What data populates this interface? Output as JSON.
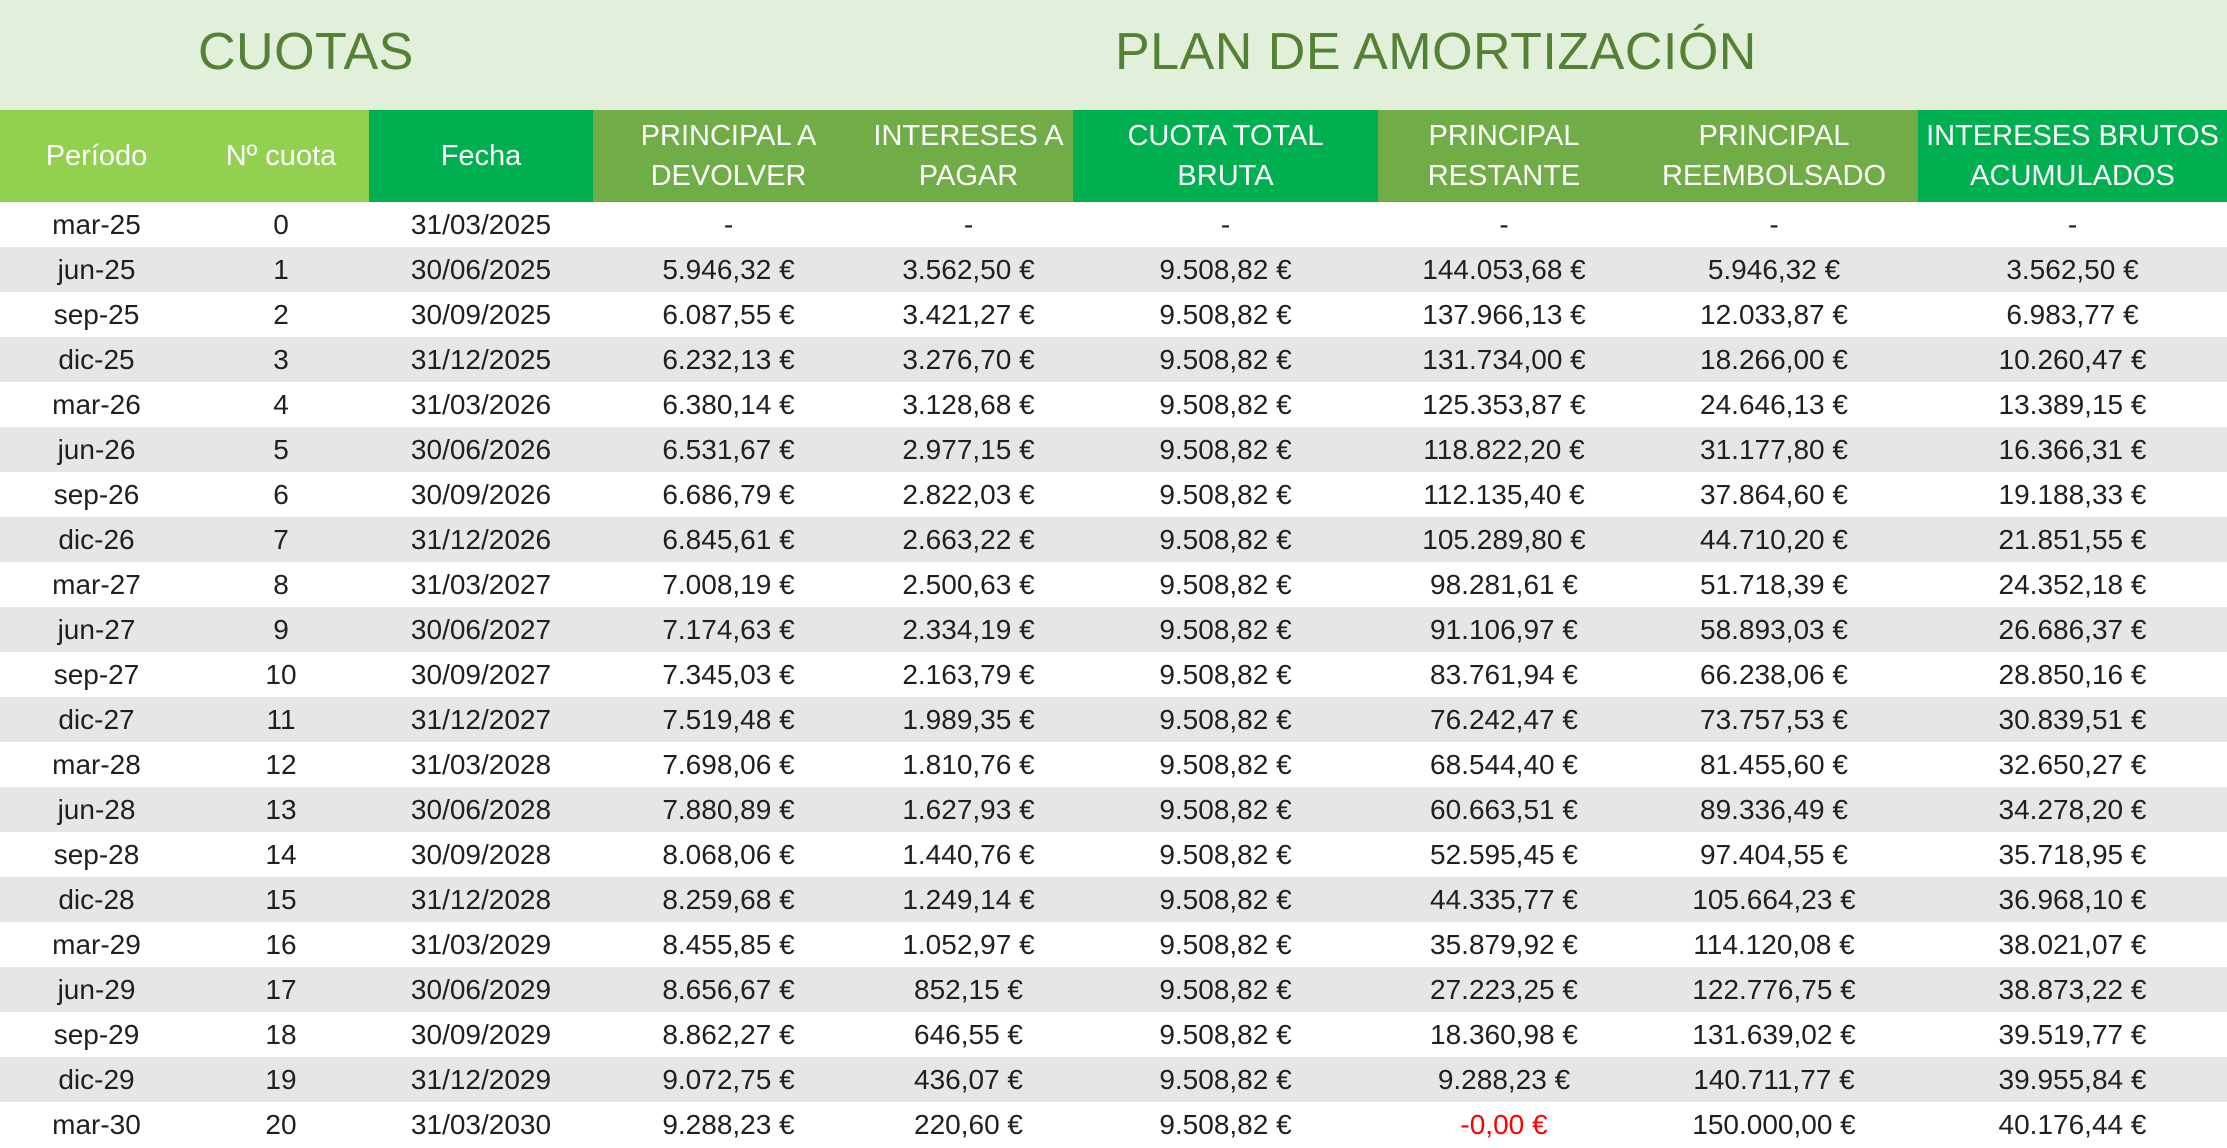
{
  "titles": {
    "cuotas": "CUOTAS",
    "plan": "PLAN DE AMORTIZACIÓN"
  },
  "headers": [
    {
      "l1": "Período",
      "l2": ""
    },
    {
      "l1": "Nº cuota",
      "l2": ""
    },
    {
      "l1": "Fecha",
      "l2": ""
    },
    {
      "l1": "PRINCIPAL A",
      "l2": "DEVOLVER"
    },
    {
      "l1": "INTERESES A",
      "l2": "PAGAR"
    },
    {
      "l1": "CUOTA TOTAL",
      "l2": "BRUTA"
    },
    {
      "l1": "PRINCIPAL",
      "l2": "RESTANTE"
    },
    {
      "l1": "PRINCIPAL",
      "l2": "REEMBOLSADO"
    },
    {
      "l1": "INTERESES BRUTOS",
      "l2": "ACUMULADOS"
    }
  ],
  "colors": {
    "title_band": "#e2efda",
    "title_text": "#548235",
    "header_light_green": "#92d050",
    "header_bright_green": "#00b050",
    "header_dark_green": "#70ad47",
    "stripe": "#e7e6e6",
    "negative": "#ff0000"
  },
  "rows": [
    [
      "mar-25",
      "0",
      "31/03/2025",
      "-",
      "-",
      "-",
      "-",
      "-",
      "-"
    ],
    [
      "jun-25",
      "1",
      "30/06/2025",
      "5.946,32 €",
      "3.562,50 €",
      "9.508,82 €",
      "144.053,68 €",
      "5.946,32 €",
      "3.562,50 €"
    ],
    [
      "sep-25",
      "2",
      "30/09/2025",
      "6.087,55 €",
      "3.421,27 €",
      "9.508,82 €",
      "137.966,13 €",
      "12.033,87 €",
      "6.983,77 €"
    ],
    [
      "dic-25",
      "3",
      "31/12/2025",
      "6.232,13 €",
      "3.276,70 €",
      "9.508,82 €",
      "131.734,00 €",
      "18.266,00 €",
      "10.260,47 €"
    ],
    [
      "mar-26",
      "4",
      "31/03/2026",
      "6.380,14 €",
      "3.128,68 €",
      "9.508,82 €",
      "125.353,87 €",
      "24.646,13 €",
      "13.389,15 €"
    ],
    [
      "jun-26",
      "5",
      "30/06/2026",
      "6.531,67 €",
      "2.977,15 €",
      "9.508,82 €",
      "118.822,20 €",
      "31.177,80 €",
      "16.366,31 €"
    ],
    [
      "sep-26",
      "6",
      "30/09/2026",
      "6.686,79 €",
      "2.822,03 €",
      "9.508,82 €",
      "112.135,40 €",
      "37.864,60 €",
      "19.188,33 €"
    ],
    [
      "dic-26",
      "7",
      "31/12/2026",
      "6.845,61 €",
      "2.663,22 €",
      "9.508,82 €",
      "105.289,80 €",
      "44.710,20 €",
      "21.851,55 €"
    ],
    [
      "mar-27",
      "8",
      "31/03/2027",
      "7.008,19 €",
      "2.500,63 €",
      "9.508,82 €",
      "98.281,61 €",
      "51.718,39 €",
      "24.352,18 €"
    ],
    [
      "jun-27",
      "9",
      "30/06/2027",
      "7.174,63 €",
      "2.334,19 €",
      "9.508,82 €",
      "91.106,97 €",
      "58.893,03 €",
      "26.686,37 €"
    ],
    [
      "sep-27",
      "10",
      "30/09/2027",
      "7.345,03 €",
      "2.163,79 €",
      "9.508,82 €",
      "83.761,94 €",
      "66.238,06 €",
      "28.850,16 €"
    ],
    [
      "dic-27",
      "11",
      "31/12/2027",
      "7.519,48 €",
      "1.989,35 €",
      "9.508,82 €",
      "76.242,47 €",
      "73.757,53 €",
      "30.839,51 €"
    ],
    [
      "mar-28",
      "12",
      "31/03/2028",
      "7.698,06 €",
      "1.810,76 €",
      "9.508,82 €",
      "68.544,40 €",
      "81.455,60 €",
      "32.650,27 €"
    ],
    [
      "jun-28",
      "13",
      "30/06/2028",
      "7.880,89 €",
      "1.627,93 €",
      "9.508,82 €",
      "60.663,51 €",
      "89.336,49 €",
      "34.278,20 €"
    ],
    [
      "sep-28",
      "14",
      "30/09/2028",
      "8.068,06 €",
      "1.440,76 €",
      "9.508,82 €",
      "52.595,45 €",
      "97.404,55 €",
      "35.718,95 €"
    ],
    [
      "dic-28",
      "15",
      "31/12/2028",
      "8.259,68 €",
      "1.249,14 €",
      "9.508,82 €",
      "44.335,77 €",
      "105.664,23 €",
      "36.968,10 €"
    ],
    [
      "mar-29",
      "16",
      "31/03/2029",
      "8.455,85 €",
      "1.052,97 €",
      "9.508,82 €",
      "35.879,92 €",
      "114.120,08 €",
      "38.021,07 €"
    ],
    [
      "jun-29",
      "17",
      "30/06/2029",
      "8.656,67 €",
      "852,15 €",
      "9.508,82 €",
      "27.223,25 €",
      "122.776,75 €",
      "38.873,22 €"
    ],
    [
      "sep-29",
      "18",
      "30/09/2029",
      "8.862,27 €",
      "646,55 €",
      "9.508,82 €",
      "18.360,98 €",
      "131.639,02 €",
      "39.519,77 €"
    ],
    [
      "dic-29",
      "19",
      "31/12/2029",
      "9.072,75 €",
      "436,07 €",
      "9.508,82 €",
      "9.288,23 €",
      "140.711,77 €",
      "39.955,84 €"
    ],
    [
      "mar-30",
      "20",
      "31/03/2030",
      "9.288,23 €",
      "220,60 €",
      "9.508,82 €",
      "-0,00 €",
      "150.000,00 €",
      "40.176,44 €"
    ]
  ]
}
